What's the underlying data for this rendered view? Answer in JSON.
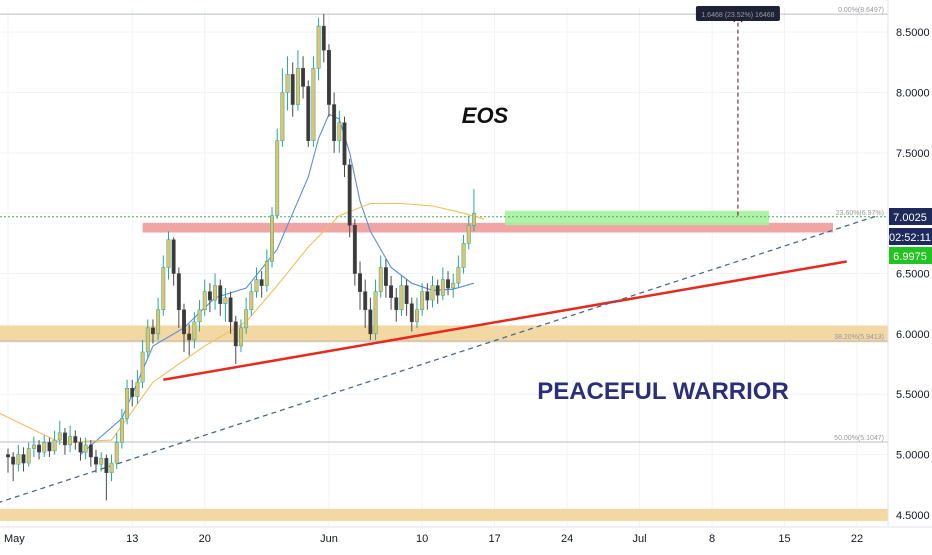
{
  "chart_data": {
    "type": "candlestick",
    "title": "EOS",
    "watermark": "PEACEFUL WARRIOR",
    "ylim": [
      4.4,
      8.7
    ],
    "y_ticks": [
      "8.5000",
      "8.0000",
      "7.5000",
      "7.0000",
      "6.5000",
      "6.0000",
      "5.5000",
      "5.0000",
      "4.5000"
    ],
    "y_tick_values": [
      8.5,
      8.0,
      7.5,
      7.0,
      6.5,
      6.0,
      5.5,
      5.0,
      4.5
    ],
    "x_ticks": [
      "May",
      "13",
      "20",
      "Jun",
      "10",
      "17",
      "24",
      "Jul",
      "8",
      "15",
      "22"
    ],
    "x_tick_days": [
      1,
      13,
      20,
      32,
      41,
      48,
      55,
      62,
      69,
      76,
      83
    ],
    "x_axis_note": "day index counted from May 1 = 1",
    "price_tags": {
      "last_price": "7.0025",
      "countdown": "02:52:11",
      "bid_price": "6.9975"
    },
    "measure_label": "1.6468 (23.52%) 16468",
    "fib_labels": {
      "top": "0.00%(8.6497)",
      "mid": "23.60%(6.97%)",
      "lower": "38.20%(5.9413)",
      "bottom": "50.00%(5.1047)"
    },
    "fib_levels": [
      8.6497,
      6.97,
      5.9413,
      5.1047
    ],
    "zones": [
      {
        "name": "support-top",
        "from_day": 0,
        "to_day": 88,
        "low": 5.93,
        "high": 6.07,
        "color": "#f2d49a"
      },
      {
        "name": "support-bottom",
        "from_day": 0,
        "to_day": 88,
        "low": 4.45,
        "high": 4.55,
        "color": "#f2d49a"
      },
      {
        "name": "resistance",
        "from_day": 14,
        "to_day": 82,
        "low": 6.84,
        "high": 6.92,
        "color": "#ef9a9a"
      },
      {
        "name": "target-box",
        "from_day": 49,
        "to_day": 74.5,
        "low": 6.9,
        "high": 7.02,
        "color": "#a5f2a0"
      }
    ],
    "trendlines": [
      {
        "name": "red-trendline",
        "from": [
          16,
          5.62
        ],
        "to": [
          82,
          6.6
        ],
        "color": "#e62a1f",
        "style": "solid"
      },
      {
        "name": "dashed-trendline",
        "from": [
          0,
          4.6
        ],
        "to": [
          85,
          6.98
        ],
        "color": "#4a6a8a",
        "style": "dashed"
      }
    ],
    "measure_arrow": {
      "day": 71.5,
      "from": 6.98,
      "to": 8.65
    },
    "series": [
      {
        "name": "",
        "color": "#5b8fd6",
        "values": [
          [
            8,
            5.0
          ],
          [
            12,
            5.3
          ],
          [
            15,
            5.9
          ],
          [
            18,
            6.05
          ],
          [
            21,
            6.3
          ],
          [
            24,
            6.38
          ],
          [
            27,
            6.7
          ],
          [
            30,
            7.3
          ],
          [
            31,
            7.62
          ],
          [
            32,
            7.82
          ],
          [
            33,
            7.78
          ],
          [
            34,
            7.5
          ],
          [
            35,
            7.1
          ],
          [
            36,
            6.85
          ],
          [
            38,
            6.55
          ],
          [
            40,
            6.42
          ],
          [
            42,
            6.36
          ],
          [
            44,
            6.37
          ],
          [
            46,
            6.42
          ]
        ]
      },
      {
        "name": "",
        "color": "#f0c060",
        "values": [
          [
            0,
            5.35
          ],
          [
            6,
            5.1
          ],
          [
            11,
            5.12
          ],
          [
            15,
            5.6
          ],
          [
            20,
            5.9
          ],
          [
            24,
            6.1
          ],
          [
            27,
            6.4
          ],
          [
            30,
            6.72
          ],
          [
            33,
            6.98
          ],
          [
            36,
            7.08
          ],
          [
            39,
            7.08
          ],
          [
            42,
            7.06
          ],
          [
            45,
            7.0
          ],
          [
            47,
            6.95
          ]
        ]
      }
    ],
    "candles": [
      [
        1.0,
        5.0,
        4.98,
        5.05,
        4.85
      ],
      [
        1.5,
        4.98,
        4.92,
        5.02,
        4.78
      ],
      [
        2.0,
        4.92,
        5.0,
        5.08,
        4.86
      ],
      [
        2.5,
        5.0,
        4.93,
        5.06,
        4.86
      ],
      [
        3.0,
        4.93,
        5.05,
        5.1,
        4.9
      ],
      [
        3.5,
        5.05,
        5.08,
        5.15,
        4.98
      ],
      [
        4.0,
        5.08,
        5.02,
        5.12,
        4.96
      ],
      [
        4.5,
        5.02,
        5.1,
        5.16,
        4.98
      ],
      [
        5.0,
        5.1,
        5.03,
        5.14,
        4.98
      ],
      [
        5.5,
        5.03,
        5.12,
        5.2,
        5.0
      ],
      [
        6.0,
        5.12,
        5.18,
        5.28,
        5.08
      ],
      [
        6.5,
        5.18,
        5.08,
        5.22,
        5.0
      ],
      [
        7.0,
        5.08,
        5.15,
        5.24,
        5.02
      ],
      [
        7.5,
        5.15,
        5.1,
        5.2,
        5.04
      ],
      [
        8.0,
        5.1,
        5.02,
        5.14,
        4.95
      ],
      [
        8.5,
        5.02,
        5.08,
        5.14,
        4.96
      ],
      [
        9.0,
        5.08,
        4.98,
        5.12,
        4.9
      ],
      [
        9.5,
        4.98,
        4.92,
        5.04,
        4.85
      ],
      [
        10.0,
        4.92,
        4.97,
        5.02,
        4.86
      ],
      [
        10.5,
        4.97,
        4.85,
        5.0,
        4.62
      ],
      [
        11.0,
        4.85,
        4.93,
        5.0,
        4.78
      ],
      [
        11.5,
        4.93,
        5.1,
        5.18,
        4.88
      ],
      [
        12.0,
        5.1,
        5.3,
        5.38,
        5.05
      ],
      [
        12.5,
        5.3,
        5.55,
        5.62,
        5.25
      ],
      [
        13.0,
        5.55,
        5.48,
        5.62,
        5.4
      ],
      [
        13.5,
        5.48,
        5.6,
        5.7,
        5.42
      ],
      [
        14.0,
        5.6,
        5.85,
        5.95,
        5.55
      ],
      [
        14.5,
        5.85,
        6.05,
        6.12,
        5.8
      ],
      [
        15.0,
        6.05,
        6.0,
        6.12,
        5.92
      ],
      [
        15.5,
        6.0,
        6.2,
        6.3,
        5.95
      ],
      [
        16.0,
        6.2,
        6.55,
        6.65,
        6.15
      ],
      [
        16.5,
        6.55,
        6.78,
        6.85,
        6.45
      ],
      [
        17.0,
        6.78,
        6.5,
        6.8,
        6.4
      ],
      [
        17.5,
        6.5,
        6.2,
        6.55,
        6.05
      ],
      [
        18.0,
        6.2,
        6.0,
        6.25,
        5.85
      ],
      [
        18.5,
        6.0,
        5.95,
        6.08,
        5.82
      ],
      [
        19.0,
        5.95,
        6.1,
        6.18,
        5.88
      ],
      [
        19.5,
        6.1,
        6.2,
        6.28,
        6.02
      ],
      [
        20.0,
        6.2,
        6.35,
        6.45,
        6.15
      ],
      [
        20.5,
        6.35,
        6.28,
        6.42,
        6.18
      ],
      [
        21.0,
        6.28,
        6.4,
        6.5,
        6.2
      ],
      [
        21.5,
        6.4,
        6.25,
        6.45,
        6.15
      ],
      [
        22.0,
        6.25,
        6.3,
        6.38,
        6.1
      ],
      [
        22.5,
        6.3,
        6.1,
        6.35,
        6.0
      ],
      [
        23.0,
        6.1,
        5.9,
        6.15,
        5.75
      ],
      [
        23.5,
        5.9,
        6.05,
        6.12,
        5.85
      ],
      [
        24.0,
        6.05,
        6.2,
        6.3,
        6.0
      ],
      [
        24.5,
        6.2,
        6.35,
        6.42,
        6.15
      ],
      [
        25.0,
        6.35,
        6.45,
        6.55,
        6.3
      ],
      [
        25.5,
        6.45,
        6.4,
        6.52,
        6.3
      ],
      [
        26.0,
        6.4,
        6.6,
        6.7,
        6.35
      ],
      [
        26.5,
        6.6,
        6.98,
        7.05,
        6.55
      ],
      [
        27.0,
        6.98,
        7.6,
        7.7,
        6.95
      ],
      [
        27.5,
        7.6,
        8.0,
        8.2,
        7.55
      ],
      [
        28.0,
        8.0,
        8.15,
        8.3,
        7.85
      ],
      [
        28.5,
        8.15,
        7.9,
        8.25,
        7.8
      ],
      [
        29.0,
        7.9,
        8.2,
        8.35,
        7.85
      ],
      [
        29.5,
        8.2,
        8.05,
        8.3,
        7.95
      ],
      [
        30.0,
        8.05,
        7.6,
        8.1,
        7.55
      ],
      [
        30.5,
        7.6,
        8.2,
        8.3,
        7.55
      ],
      [
        31.0,
        8.2,
        8.55,
        8.62,
        8.1
      ],
      [
        31.5,
        8.55,
        8.35,
        8.65,
        8.25
      ],
      [
        32.0,
        8.35,
        7.9,
        8.4,
        7.8
      ],
      [
        32.5,
        7.9,
        7.6,
        8.0,
        7.5
      ],
      [
        33.0,
        7.6,
        7.75,
        7.85,
        7.5
      ],
      [
        33.5,
        7.75,
        7.4,
        7.8,
        7.3
      ],
      [
        34.0,
        7.4,
        6.9,
        7.45,
        6.8
      ],
      [
        34.5,
        6.9,
        6.5,
        6.95,
        6.4
      ],
      [
        35.0,
        6.5,
        6.35,
        6.6,
        6.2
      ],
      [
        35.5,
        6.35,
        6.2,
        6.45,
        6.05
      ],
      [
        36.0,
        6.2,
        6.0,
        6.3,
        5.95
      ],
      [
        36.5,
        6.0,
        6.35,
        6.45,
        5.95
      ],
      [
        37.0,
        6.35,
        6.55,
        6.65,
        6.3
      ],
      [
        37.5,
        6.55,
        6.4,
        6.62,
        6.3
      ],
      [
        38.0,
        6.4,
        6.3,
        6.48,
        6.2
      ],
      [
        38.5,
        6.3,
        6.2,
        6.38,
        6.1
      ],
      [
        39.0,
        6.2,
        6.4,
        6.48,
        6.15
      ],
      [
        39.5,
        6.4,
        6.25,
        6.45,
        6.15
      ],
      [
        40.0,
        6.25,
        6.1,
        6.3,
        6.02
      ],
      [
        40.5,
        6.1,
        6.2,
        6.3,
        6.05
      ],
      [
        41.0,
        6.2,
        6.35,
        6.42,
        6.15
      ],
      [
        41.5,
        6.35,
        6.28,
        6.42,
        6.2
      ],
      [
        42.0,
        6.28,
        6.4,
        6.48,
        6.22
      ],
      [
        42.5,
        6.4,
        6.32,
        6.45,
        6.25
      ],
      [
        43.0,
        6.32,
        6.45,
        6.55,
        6.28
      ],
      [
        43.5,
        6.45,
        6.38,
        6.52,
        6.32
      ],
      [
        44.0,
        6.38,
        6.42,
        6.5,
        6.3
      ],
      [
        44.5,
        6.42,
        6.55,
        6.65,
        6.38
      ],
      [
        45.0,
        6.55,
        6.75,
        6.82,
        6.5
      ],
      [
        45.5,
        6.75,
        6.9,
        6.98,
        6.7
      ],
      [
        46.0,
        6.9,
        7.0,
        7.2,
        6.85
      ]
    ]
  }
}
